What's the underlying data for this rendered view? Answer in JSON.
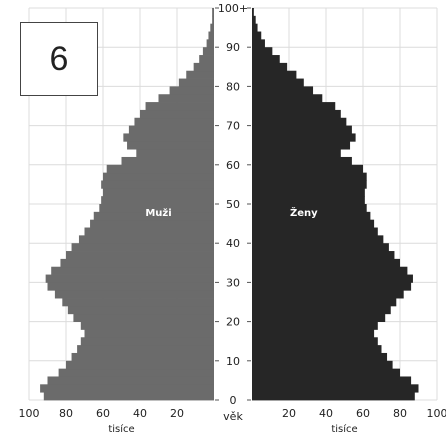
{
  "badge": {
    "number": "6"
  },
  "chart_data": {
    "type": "bar",
    "orientation": "population-pyramid",
    "x_unit_label": "tisíce",
    "age_axis_label": "věk",
    "age_ticks": [
      "0",
      "10",
      "20",
      "30",
      "40",
      "50",
      "60",
      "70",
      "80",
      "90",
      "100+"
    ],
    "left_ticks": [
      100,
      80,
      60,
      40,
      20
    ],
    "right_ticks": [
      20,
      40,
      60,
      80,
      100
    ],
    "xlim": [
      0,
      100
    ],
    "ylim": [
      0,
      100
    ],
    "grid": true,
    "series": [
      {
        "name": "Muži",
        "side": "left",
        "color": "#6b6b6b",
        "points": [
          [
            0,
            92
          ],
          [
            2,
            94
          ],
          [
            4,
            90
          ],
          [
            6,
            84
          ],
          [
            8,
            80
          ],
          [
            10,
            77
          ],
          [
            12,
            74
          ],
          [
            14,
            72
          ],
          [
            16,
            70
          ],
          [
            18,
            72
          ],
          [
            20,
            76
          ],
          [
            22,
            79
          ],
          [
            24,
            82
          ],
          [
            26,
            86
          ],
          [
            28,
            90
          ],
          [
            30,
            91
          ],
          [
            32,
            88
          ],
          [
            34,
            83
          ],
          [
            36,
            80
          ],
          [
            38,
            77
          ],
          [
            40,
            73
          ],
          [
            42,
            70
          ],
          [
            44,
            67
          ],
          [
            46,
            65
          ],
          [
            48,
            62
          ],
          [
            50,
            61
          ],
          [
            52,
            60
          ],
          [
            54,
            61
          ],
          [
            56,
            60
          ],
          [
            58,
            58
          ],
          [
            60,
            50
          ],
          [
            62,
            42
          ],
          [
            64,
            47
          ],
          [
            66,
            49
          ],
          [
            68,
            46
          ],
          [
            70,
            43
          ],
          [
            72,
            40
          ],
          [
            74,
            37
          ],
          [
            76,
            30
          ],
          [
            78,
            24
          ],
          [
            80,
            19
          ],
          [
            82,
            15
          ],
          [
            84,
            11
          ],
          [
            86,
            8
          ],
          [
            88,
            6
          ],
          [
            90,
            4
          ],
          [
            92,
            3
          ],
          [
            94,
            2
          ],
          [
            96,
            1
          ],
          [
            98,
            1
          ],
          [
            100,
            1
          ]
        ]
      },
      {
        "name": "Ženy",
        "side": "right",
        "color": "#262626",
        "points": [
          [
            0,
            88
          ],
          [
            2,
            90
          ],
          [
            4,
            86
          ],
          [
            6,
            80
          ],
          [
            8,
            76
          ],
          [
            10,
            73
          ],
          [
            12,
            70
          ],
          [
            14,
            68
          ],
          [
            16,
            66
          ],
          [
            18,
            68
          ],
          [
            20,
            72
          ],
          [
            22,
            75
          ],
          [
            24,
            78
          ],
          [
            26,
            82
          ],
          [
            28,
            86
          ],
          [
            30,
            87
          ],
          [
            32,
            84
          ],
          [
            34,
            80
          ],
          [
            36,
            77
          ],
          [
            38,
            74
          ],
          [
            40,
            71
          ],
          [
            42,
            68
          ],
          [
            44,
            66
          ],
          [
            46,
            64
          ],
          [
            48,
            62
          ],
          [
            50,
            61
          ],
          [
            52,
            61
          ],
          [
            54,
            62
          ],
          [
            56,
            62
          ],
          [
            58,
            60
          ],
          [
            60,
            54
          ],
          [
            62,
            48
          ],
          [
            64,
            53
          ],
          [
            66,
            56
          ],
          [
            68,
            54
          ],
          [
            70,
            51
          ],
          [
            72,
            48
          ],
          [
            74,
            45
          ],
          [
            76,
            38
          ],
          [
            78,
            33
          ],
          [
            80,
            28
          ],
          [
            82,
            24
          ],
          [
            84,
            19
          ],
          [
            86,
            15
          ],
          [
            88,
            11
          ],
          [
            90,
            7
          ],
          [
            92,
            5
          ],
          [
            94,
            3
          ],
          [
            96,
            2
          ],
          [
            98,
            1
          ],
          [
            100,
            1
          ]
        ]
      }
    ]
  }
}
